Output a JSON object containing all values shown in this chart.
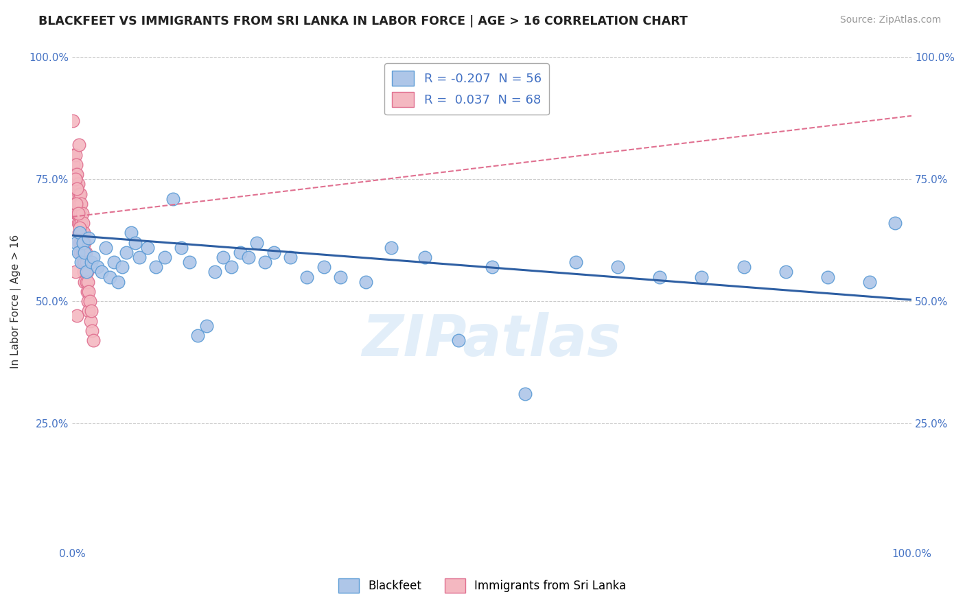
{
  "title": "BLACKFEET VS IMMIGRANTS FROM SRI LANKA IN LABOR FORCE | AGE > 16 CORRELATION CHART",
  "source": "Source: ZipAtlas.com",
  "xlabel": "",
  "ylabel": "In Labor Force | Age > 16",
  "blue_label": "Blackfeet",
  "pink_label": "Immigrants from Sri Lanka",
  "blue_R": -0.207,
  "blue_N": 56,
  "pink_R": 0.037,
  "pink_N": 68,
  "xmin": 0.0,
  "xmax": 1.0,
  "ymin": 0.0,
  "ymax": 1.0,
  "background_color": "#ffffff",
  "grid_color": "#cccccc",
  "blue_scatter_color": "#aec6e8",
  "blue_scatter_edge": "#5b9bd5",
  "pink_scatter_color": "#f4b8c1",
  "pink_scatter_edge": "#e07090",
  "blue_line_color": "#2e5fa3",
  "pink_line_color": "#e07090",
  "watermark": "ZIPatlas",
  "watermark_color": "#d0e4f5",
  "blue_x": [
    0.005,
    0.007,
    0.009,
    0.011,
    0.013,
    0.015,
    0.017,
    0.02,
    0.023,
    0.025,
    0.03,
    0.035,
    0.04,
    0.045,
    0.05,
    0.055,
    0.06,
    0.065,
    0.07,
    0.075,
    0.08,
    0.09,
    0.1,
    0.11,
    0.12,
    0.13,
    0.14,
    0.15,
    0.16,
    0.17,
    0.18,
    0.19,
    0.2,
    0.21,
    0.22,
    0.23,
    0.24,
    0.26,
    0.28,
    0.3,
    0.32,
    0.35,
    0.38,
    0.42,
    0.46,
    0.5,
    0.54,
    0.6,
    0.65,
    0.7,
    0.75,
    0.8,
    0.85,
    0.9,
    0.95,
    0.98
  ],
  "blue_y": [
    0.62,
    0.6,
    0.64,
    0.58,
    0.62,
    0.6,
    0.56,
    0.63,
    0.58,
    0.59,
    0.57,
    0.56,
    0.61,
    0.55,
    0.58,
    0.54,
    0.57,
    0.6,
    0.64,
    0.62,
    0.59,
    0.61,
    0.57,
    0.59,
    0.71,
    0.61,
    0.58,
    0.43,
    0.45,
    0.56,
    0.59,
    0.57,
    0.6,
    0.59,
    0.62,
    0.58,
    0.6,
    0.59,
    0.55,
    0.57,
    0.55,
    0.54,
    0.61,
    0.59,
    0.42,
    0.57,
    0.31,
    0.58,
    0.57,
    0.55,
    0.55,
    0.57,
    0.56,
    0.55,
    0.54,
    0.66
  ],
  "pink_x": [
    0.001,
    0.002,
    0.002,
    0.003,
    0.003,
    0.003,
    0.004,
    0.004,
    0.004,
    0.004,
    0.005,
    0.005,
    0.005,
    0.005,
    0.006,
    0.006,
    0.006,
    0.007,
    0.007,
    0.007,
    0.008,
    0.008,
    0.008,
    0.009,
    0.009,
    0.009,
    0.01,
    0.01,
    0.01,
    0.01,
    0.011,
    0.011,
    0.011,
    0.012,
    0.012,
    0.012,
    0.013,
    0.013,
    0.013,
    0.014,
    0.014,
    0.014,
    0.015,
    0.015,
    0.015,
    0.016,
    0.016,
    0.017,
    0.017,
    0.018,
    0.018,
    0.019,
    0.019,
    0.02,
    0.02,
    0.021,
    0.022,
    0.023,
    0.024,
    0.025,
    0.004,
    0.006,
    0.008,
    0.005,
    0.007,
    0.009,
    0.004,
    0.006
  ],
  "pink_y": [
    0.87,
    0.8,
    0.78,
    0.76,
    0.74,
    0.72,
    0.8,
    0.76,
    0.72,
    0.7,
    0.78,
    0.74,
    0.7,
    0.68,
    0.76,
    0.72,
    0.68,
    0.74,
    0.7,
    0.66,
    0.72,
    0.68,
    0.64,
    0.7,
    0.66,
    0.62,
    0.72,
    0.68,
    0.64,
    0.6,
    0.7,
    0.66,
    0.62,
    0.68,
    0.64,
    0.6,
    0.66,
    0.62,
    0.58,
    0.64,
    0.6,
    0.56,
    0.62,
    0.58,
    0.54,
    0.6,
    0.56,
    0.58,
    0.54,
    0.56,
    0.52,
    0.54,
    0.5,
    0.52,
    0.48,
    0.5,
    0.46,
    0.48,
    0.44,
    0.42,
    0.75,
    0.73,
    0.82,
    0.7,
    0.68,
    0.65,
    0.56,
    0.47
  ],
  "blue_trend_x0": 0.0,
  "blue_trend_y0": 0.635,
  "blue_trend_x1": 1.0,
  "blue_trend_y1": 0.503,
  "pink_trend_x0": 0.0,
  "pink_trend_y0": 0.673,
  "pink_trend_x1": 1.0,
  "pink_trend_y1": 0.88
}
